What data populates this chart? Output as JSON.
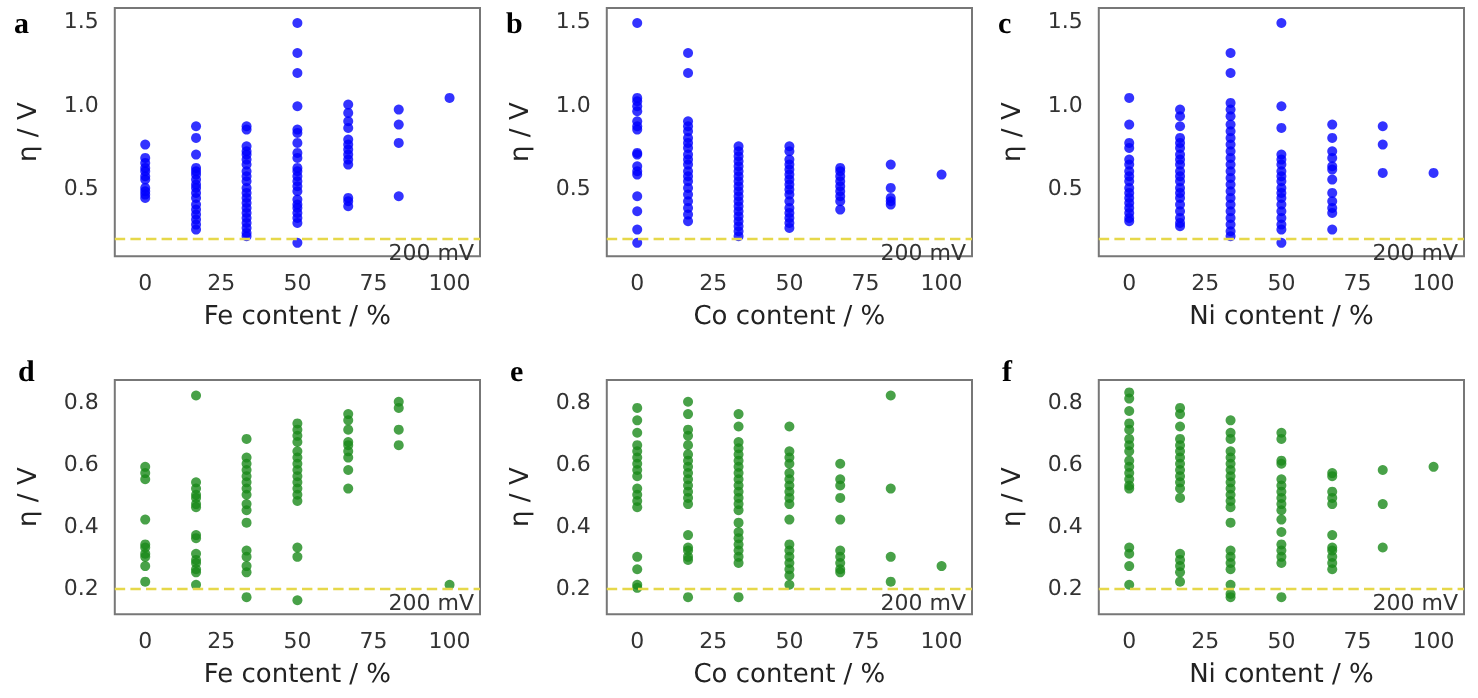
{
  "chart_data": [
    {
      "type": "scatter",
      "title": "a",
      "xlabel": "Fe content / %",
      "ylabel": "η / V",
      "xlim": [
        -10,
        110
      ],
      "xticks": [
        0,
        25,
        50,
        75,
        100
      ],
      "ylim": [
        0.09,
        1.58
      ],
      "yticks": [
        {
          "value": 0.5,
          "label": "0.5"
        },
        {
          "value": 1.0,
          "label": "1.0"
        },
        {
          "value": 1.5,
          "label": "1.5"
        }
      ],
      "grid": false,
      "marker": "circle",
      "ref_lines": [
        {
          "axis": "y",
          "value": 0.2,
          "label": "200 mV",
          "color": "#e6d84a",
          "line_style": "dashed"
        }
      ],
      "series": [
        {
          "color": "#0000ff",
          "x": [
            0,
            0,
            0,
            0,
            0,
            0,
            0,
            0,
            0,
            0,
            0,
            16.7,
            16.7,
            16.7,
            16.7,
            16.7,
            16.7,
            16.7,
            16.7,
            16.7,
            16.7,
            16.7,
            16.7,
            16.7,
            16.7,
            16.7,
            16.7,
            16.7,
            33.3,
            33.3,
            33.3,
            33.3,
            33.3,
            33.3,
            33.3,
            33.3,
            33.3,
            33.3,
            33.3,
            33.3,
            33.3,
            33.3,
            33.3,
            33.3,
            33.3,
            33.3,
            33.3,
            33.3,
            33.3,
            50,
            50,
            50,
            50,
            50,
            50,
            50,
            50,
            50,
            50,
            50,
            50,
            50,
            50,
            50,
            50,
            50,
            50,
            50,
            50,
            50,
            50,
            66.7,
            66.7,
            66.7,
            66.7,
            66.7,
            66.7,
            66.7,
            66.7,
            66.7,
            66.7,
            66.7,
            66.7,
            66.7,
            83.3,
            83.3,
            83.3,
            83.3,
            100
          ],
          "values": [
            0.76,
            0.68,
            0.65,
            0.62,
            0.6,
            0.57,
            0.55,
            0.5,
            0.48,
            0.46,
            0.44,
            0.87,
            0.8,
            0.7,
            0.62,
            0.6,
            0.58,
            0.55,
            0.52,
            0.5,
            0.47,
            0.44,
            0.4,
            0.37,
            0.34,
            0.31,
            0.28,
            0.25,
            0.87,
            0.85,
            0.75,
            0.72,
            0.7,
            0.67,
            0.64,
            0.6,
            0.57,
            0.54,
            0.5,
            0.47,
            0.44,
            0.41,
            0.38,
            0.35,
            0.32,
            0.29,
            0.26,
            0.23,
            0.21,
            1.49,
            1.31,
            1.19,
            0.99,
            0.85,
            0.83,
            0.77,
            0.71,
            0.68,
            0.62,
            0.6,
            0.57,
            0.54,
            0.51,
            0.48,
            0.43,
            0.4,
            0.38,
            0.35,
            0.32,
            0.29,
            0.17,
            1.0,
            0.95,
            0.9,
            0.86,
            0.79,
            0.76,
            0.73,
            0.7,
            0.67,
            0.64,
            0.44,
            0.42,
            0.39,
            0.97,
            0.88,
            0.77,
            0.45,
            1.04
          ]
        }
      ]
    },
    {
      "type": "scatter",
      "title": "b",
      "xlabel": "Co content / %",
      "ylabel": "η / V",
      "xlim": [
        -10,
        110
      ],
      "xticks": [
        0,
        25,
        50,
        75,
        100
      ],
      "ylim": [
        0.09,
        1.58
      ],
      "yticks": [
        {
          "value": 0.5,
          "label": "0.5"
        },
        {
          "value": 1.0,
          "label": "1.0"
        },
        {
          "value": 1.5,
          "label": "1.5"
        }
      ],
      "grid": false,
      "marker": "circle",
      "ref_lines": [
        {
          "axis": "y",
          "value": 0.2,
          "label": "200 mV",
          "color": "#e6d84a",
          "line_style": "dashed"
        }
      ],
      "series": [
        {
          "color": "#0000ff",
          "x": [
            0,
            0,
            0,
            0,
            0,
            0,
            0,
            0,
            0,
            0,
            0,
            0,
            0,
            0,
            0,
            0,
            0,
            16.7,
            16.7,
            16.7,
            16.7,
            16.7,
            16.7,
            16.7,
            16.7,
            16.7,
            16.7,
            16.7,
            16.7,
            16.7,
            16.7,
            16.7,
            16.7,
            16.7,
            16.7,
            16.7,
            16.7,
            33.3,
            33.3,
            33.3,
            33.3,
            33.3,
            33.3,
            33.3,
            33.3,
            33.3,
            33.3,
            33.3,
            33.3,
            33.3,
            33.3,
            33.3,
            33.3,
            33.3,
            33.3,
            33.3,
            50,
            50,
            50,
            50,
            50,
            50,
            50,
            50,
            50,
            50,
            50,
            50,
            50,
            50,
            50,
            50,
            66.7,
            66.7,
            66.7,
            66.7,
            66.7,
            66.7,
            66.7,
            66.7,
            66.7,
            83.3,
            83.3,
            83.3,
            83.3,
            83.3,
            100
          ],
          "values": [
            1.49,
            1.04,
            1.02,
            0.99,
            0.96,
            0.9,
            0.87,
            0.85,
            0.71,
            0.7,
            0.63,
            0.6,
            0.58,
            0.45,
            0.36,
            0.25,
            0.17,
            1.31,
            1.19,
            0.9,
            0.87,
            0.84,
            0.8,
            0.77,
            0.74,
            0.7,
            0.67,
            0.64,
            0.6,
            0.57,
            0.54,
            0.5,
            0.46,
            0.42,
            0.38,
            0.34,
            0.3,
            0.75,
            0.72,
            0.69,
            0.66,
            0.63,
            0.6,
            0.57,
            0.54,
            0.51,
            0.48,
            0.45,
            0.42,
            0.39,
            0.36,
            0.33,
            0.3,
            0.27,
            0.24,
            0.21,
            0.75,
            0.72,
            0.67,
            0.64,
            0.61,
            0.58,
            0.55,
            0.52,
            0.49,
            0.46,
            0.42,
            0.38,
            0.35,
            0.32,
            0.29,
            0.26,
            0.62,
            0.6,
            0.57,
            0.54,
            0.51,
            0.48,
            0.45,
            0.42,
            0.37,
            0.64,
            0.5,
            0.44,
            0.42,
            0.4,
            0.58
          ]
        }
      ]
    },
    {
      "type": "scatter",
      "title": "c",
      "xlabel": "Ni content / %",
      "ylabel": "η / V",
      "xlim": [
        -10,
        110
      ],
      "xticks": [
        0,
        25,
        50,
        75,
        100
      ],
      "ylim": [
        0.09,
        1.58
      ],
      "yticks": [
        {
          "value": 0.5,
          "label": "0.5"
        },
        {
          "value": 1.0,
          "label": "1.0"
        },
        {
          "value": 1.5,
          "label": "1.5"
        }
      ],
      "grid": false,
      "marker": "circle",
      "ref_lines": [
        {
          "axis": "y",
          "value": 0.2,
          "label": "200 mV",
          "color": "#e6d84a",
          "line_style": "dashed"
        }
      ],
      "series": [
        {
          "color": "#0000ff",
          "x": [
            0,
            0,
            0,
            0,
            0,
            0,
            0,
            0,
            0,
            0,
            0,
            0,
            0,
            0,
            0,
            0,
            0,
            16.7,
            16.7,
            16.7,
            16.7,
            16.7,
            16.7,
            16.7,
            16.7,
            16.7,
            16.7,
            16.7,
            16.7,
            16.7,
            16.7,
            16.7,
            16.7,
            16.7,
            16.7,
            16.7,
            16.7,
            33.3,
            33.3,
            33.3,
            33.3,
            33.3,
            33.3,
            33.3,
            33.3,
            33.3,
            33.3,
            33.3,
            33.3,
            33.3,
            33.3,
            33.3,
            33.3,
            33.3,
            33.3,
            33.3,
            33.3,
            33.3,
            33.3,
            33.3,
            50,
            50,
            50,
            50,
            50,
            50,
            50,
            50,
            50,
            50,
            50,
            50,
            50,
            50,
            50,
            50,
            50,
            50,
            66.7,
            66.7,
            66.7,
            66.7,
            66.7,
            66.7,
            66.7,
            66.7,
            66.7,
            66.7,
            66.7,
            66.7,
            83.3,
            83.3,
            83.3,
            100
          ],
          "values": [
            1.04,
            0.88,
            0.77,
            0.74,
            0.67,
            0.64,
            0.6,
            0.57,
            0.54,
            0.5,
            0.47,
            0.44,
            0.41,
            0.38,
            0.35,
            0.32,
            0.3,
            0.97,
            0.93,
            0.87,
            0.8,
            0.77,
            0.74,
            0.7,
            0.67,
            0.64,
            0.6,
            0.57,
            0.54,
            0.5,
            0.47,
            0.44,
            0.4,
            0.36,
            0.32,
            0.29,
            0.27,
            1.31,
            1.19,
            1.01,
            0.97,
            0.93,
            0.88,
            0.84,
            0.8,
            0.76,
            0.72,
            0.68,
            0.64,
            0.6,
            0.56,
            0.52,
            0.48,
            0.44,
            0.4,
            0.36,
            0.32,
            0.28,
            0.24,
            0.21,
            1.49,
            0.99,
            0.86,
            0.7,
            0.67,
            0.64,
            0.6,
            0.57,
            0.54,
            0.5,
            0.47,
            0.44,
            0.4,
            0.36,
            0.32,
            0.28,
            0.25,
            0.17,
            0.88,
            0.8,
            0.72,
            0.68,
            0.63,
            0.61,
            0.55,
            0.47,
            0.42,
            0.38,
            0.35,
            0.25,
            0.87,
            0.76,
            0.59,
            0.59
          ]
        }
      ]
    },
    {
      "type": "scatter",
      "title": "d",
      "xlabel": "Fe content / %",
      "ylabel": "η / V",
      "xlim": [
        -10,
        110
      ],
      "xticks": [
        0,
        25,
        50,
        75,
        100
      ],
      "ylim": [
        0.115,
        0.87
      ],
      "yticks": [
        0.2,
        0.4,
        0.6,
        0.8
      ],
      "grid": false,
      "marker": "circle",
      "ref_lines": [
        {
          "axis": "y",
          "value": 0.2,
          "label": "200 mV",
          "color": "#e6d84a",
          "line_style": "dashed"
        }
      ],
      "series": [
        {
          "color": "#1a8a1a",
          "x": [
            0,
            0,
            0,
            0,
            0,
            0,
            0,
            0,
            0,
            0,
            16.7,
            16.7,
            16.7,
            16.7,
            16.7,
            16.7,
            16.7,
            16.7,
            16.7,
            16.7,
            16.7,
            16.7,
            16.7,
            16.7,
            16.7,
            33.3,
            33.3,
            33.3,
            33.3,
            33.3,
            33.3,
            33.3,
            33.3,
            33.3,
            33.3,
            33.3,
            33.3,
            33.3,
            33.3,
            33.3,
            33.3,
            50,
            50,
            50,
            50,
            50,
            50,
            50,
            50,
            50,
            50,
            50,
            50,
            50,
            50,
            50,
            50,
            66.7,
            66.7,
            66.7,
            66.7,
            66.7,
            66.7,
            66.7,
            66.7,
            66.7,
            83.3,
            83.3,
            83.3,
            83.3,
            100
          ],
          "values": [
            0.59,
            0.57,
            0.55,
            0.42,
            0.34,
            0.33,
            0.31,
            0.3,
            0.27,
            0.22,
            0.82,
            0.54,
            0.52,
            0.5,
            0.49,
            0.47,
            0.46,
            0.37,
            0.36,
            0.31,
            0.29,
            0.28,
            0.26,
            0.25,
            0.21,
            0.68,
            0.62,
            0.6,
            0.58,
            0.56,
            0.54,
            0.52,
            0.5,
            0.47,
            0.45,
            0.41,
            0.32,
            0.3,
            0.27,
            0.25,
            0.17,
            0.73,
            0.71,
            0.69,
            0.67,
            0.64,
            0.62,
            0.6,
            0.58,
            0.56,
            0.54,
            0.52,
            0.5,
            0.48,
            0.33,
            0.3,
            0.16,
            0.76,
            0.74,
            0.71,
            0.67,
            0.66,
            0.64,
            0.62,
            0.58,
            0.52,
            0.8,
            0.78,
            0.71,
            0.66,
            0.21
          ]
        }
      ]
    },
    {
      "type": "scatter",
      "title": "e",
      "xlabel": "Co content / %",
      "ylabel": "η / V",
      "xlim": [
        -10,
        110
      ],
      "xticks": [
        0,
        25,
        50,
        75,
        100
      ],
      "ylim": [
        0.115,
        0.87
      ],
      "yticks": [
        0.2,
        0.4,
        0.6,
        0.8
      ],
      "grid": false,
      "marker": "circle",
      "ref_lines": [
        {
          "axis": "y",
          "value": 0.2,
          "label": "200 mV",
          "color": "#e6d84a",
          "line_style": "dashed"
        }
      ],
      "series": [
        {
          "color": "#1a8a1a",
          "x": [
            0,
            0,
            0,
            0,
            0,
            0,
            0,
            0,
            0,
            0,
            0,
            0,
            0,
            0,
            0,
            0,
            0,
            16.7,
            16.7,
            16.7,
            16.7,
            16.7,
            16.7,
            16.7,
            16.7,
            16.7,
            16.7,
            16.7,
            16.7,
            16.7,
            16.7,
            16.7,
            16.7,
            16.7,
            16.7,
            16.7,
            16.7,
            33.3,
            33.3,
            33.3,
            33.3,
            33.3,
            33.3,
            33.3,
            33.3,
            33.3,
            33.3,
            33.3,
            33.3,
            33.3,
            33.3,
            33.3,
            33.3,
            33.3,
            33.3,
            33.3,
            33.3,
            33.3,
            33.3,
            50,
            50,
            50,
            50,
            50,
            50,
            50,
            50,
            50,
            50,
            50,
            50,
            50,
            50,
            50,
            50,
            50,
            50,
            66.7,
            66.7,
            66.7,
            66.7,
            66.7,
            66.7,
            66.7,
            66.7,
            66.7,
            66.7,
            83.3,
            83.3,
            83.3,
            83.3,
            100
          ],
          "values": [
            0.78,
            0.74,
            0.7,
            0.66,
            0.64,
            0.62,
            0.6,
            0.58,
            0.56,
            0.52,
            0.5,
            0.48,
            0.46,
            0.3,
            0.26,
            0.21,
            0.2,
            0.8,
            0.76,
            0.71,
            0.69,
            0.66,
            0.63,
            0.61,
            0.59,
            0.57,
            0.55,
            0.53,
            0.51,
            0.49,
            0.47,
            0.37,
            0.33,
            0.32,
            0.3,
            0.29,
            0.17,
            0.76,
            0.72,
            0.67,
            0.65,
            0.63,
            0.61,
            0.59,
            0.57,
            0.55,
            0.53,
            0.51,
            0.49,
            0.47,
            0.45,
            0.41,
            0.38,
            0.36,
            0.34,
            0.32,
            0.3,
            0.28,
            0.17,
            0.72,
            0.64,
            0.62,
            0.6,
            0.57,
            0.55,
            0.53,
            0.51,
            0.49,
            0.47,
            0.42,
            0.34,
            0.32,
            0.3,
            0.28,
            0.26,
            0.24,
            0.21,
            0.6,
            0.55,
            0.53,
            0.49,
            0.42,
            0.32,
            0.3,
            0.28,
            0.26,
            0.25,
            0.82,
            0.52,
            0.3,
            0.22,
            0.27
          ]
        }
      ]
    },
    {
      "type": "scatter",
      "title": "f",
      "xlabel": "Ni content / %",
      "ylabel": "η / V",
      "xlim": [
        -10,
        110
      ],
      "xticks": [
        0,
        25,
        50,
        75,
        100
      ],
      "ylim": [
        0.115,
        0.87
      ],
      "yticks": [
        0.2,
        0.4,
        0.6,
        0.8
      ],
      "grid": false,
      "marker": "circle",
      "ref_lines": [
        {
          "axis": "y",
          "value": 0.2,
          "label": "200 mV",
          "color": "#e6d84a",
          "line_style": "dashed"
        }
      ],
      "series": [
        {
          "color": "#1a8a1a",
          "x": [
            0,
            0,
            0,
            0,
            0,
            0,
            0,
            0,
            0,
            0,
            0,
            0,
            0,
            0,
            0,
            0,
            0,
            0,
            16.7,
            16.7,
            16.7,
            16.7,
            16.7,
            16.7,
            16.7,
            16.7,
            16.7,
            16.7,
            16.7,
            16.7,
            16.7,
            16.7,
            16.7,
            16.7,
            16.7,
            16.7,
            33.3,
            33.3,
            33.3,
            33.3,
            33.3,
            33.3,
            33.3,
            33.3,
            33.3,
            33.3,
            33.3,
            33.3,
            33.3,
            33.3,
            33.3,
            33.3,
            33.3,
            33.3,
            33.3,
            33.3,
            33.3,
            50,
            50,
            50,
            50,
            50,
            50,
            50,
            50,
            50,
            50,
            50,
            50,
            50,
            50,
            50,
            50,
            50,
            66.7,
            66.7,
            66.7,
            66.7,
            66.7,
            66.7,
            66.7,
            66.7,
            66.7,
            66.7,
            66.7,
            83.3,
            83.3,
            83.3,
            100
          ],
          "values": [
            0.83,
            0.81,
            0.77,
            0.73,
            0.71,
            0.68,
            0.66,
            0.64,
            0.61,
            0.59,
            0.57,
            0.55,
            0.53,
            0.52,
            0.33,
            0.31,
            0.27,
            0.21,
            0.78,
            0.76,
            0.72,
            0.68,
            0.66,
            0.64,
            0.62,
            0.6,
            0.58,
            0.56,
            0.54,
            0.52,
            0.49,
            0.31,
            0.29,
            0.27,
            0.25,
            0.22,
            0.74,
            0.7,
            0.68,
            0.64,
            0.62,
            0.6,
            0.58,
            0.56,
            0.54,
            0.52,
            0.5,
            0.48,
            0.46,
            0.41,
            0.32,
            0.3,
            0.28,
            0.26,
            0.21,
            0.18,
            0.17,
            0.7,
            0.68,
            0.61,
            0.6,
            0.55,
            0.53,
            0.51,
            0.49,
            0.47,
            0.45,
            0.42,
            0.38,
            0.34,
            0.32,
            0.3,
            0.28,
            0.17,
            0.57,
            0.56,
            0.51,
            0.49,
            0.47,
            0.37,
            0.33,
            0.32,
            0.3,
            0.28,
            0.26,
            0.58,
            0.47,
            0.33,
            0.59
          ]
        }
      ]
    }
  ]
}
